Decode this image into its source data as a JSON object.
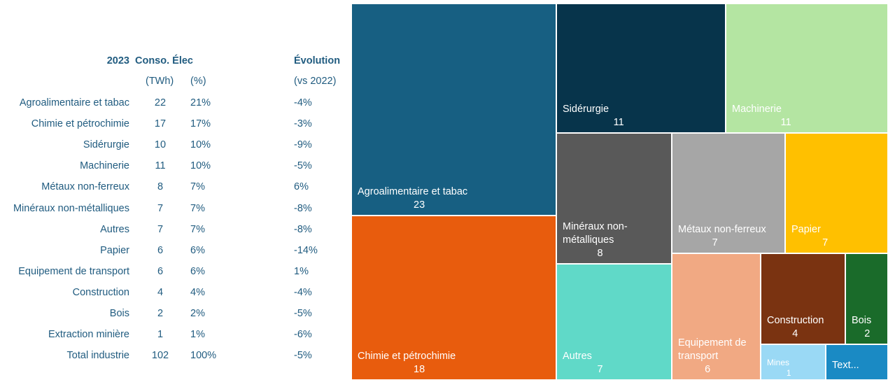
{
  "table": {
    "header": [
      "2023",
      "Conso. Élec",
      "Évolution"
    ],
    "subheader": [
      "(TWh)",
      "(%)",
      "(vs 2022)"
    ],
    "rows": [
      [
        "Agroalimentaire et tabac",
        "22",
        "21%",
        "-4%"
      ],
      [
        "Chimie et pétrochimie",
        "17",
        "17%",
        "-3%"
      ],
      [
        "Sidérurgie",
        "10",
        "10%",
        "-9%"
      ],
      [
        "Machinerie",
        "11",
        "10%",
        "-5%"
      ],
      [
        "Métaux non-ferreux",
        "8",
        "7%",
        "6%"
      ],
      [
        "Minéraux non-métalliques",
        "7",
        "7%",
        "-8%"
      ],
      [
        "Autres",
        "7",
        "7%",
        "-8%"
      ],
      [
        "Papier",
        "6",
        "6%",
        "-14%"
      ],
      [
        "Equipement de transport",
        "6",
        "6%",
        "1%"
      ],
      [
        "Construction",
        "4",
        "4%",
        "-4%"
      ],
      [
        "Bois",
        "2",
        "2%",
        "-5%"
      ],
      [
        "Extraction minière",
        "1",
        "1%",
        "-6%"
      ],
      [
        "Total industrie",
        "102",
        "100%",
        "-5%"
      ]
    ]
  },
  "chart_data": {
    "type": "treemap",
    "categories": [
      "Agroalimentaire et tabac",
      "Chimie et pétrochimie",
      "Sidérurgie",
      "Machinerie",
      "Minéraux non-métalliques",
      "Métaux non-ferreux",
      "Papier",
      "Autres",
      "Equipement de transport",
      "Construction",
      "Bois",
      "Mines",
      "Text..."
    ],
    "values": [
      23,
      18,
      11,
      11,
      8,
      7,
      7,
      7,
      6,
      4,
      2,
      1,
      1
    ],
    "value_labels": [
      "23",
      "18",
      "11",
      "11",
      "8",
      "7",
      "7",
      "7",
      "6",
      "4",
      "2",
      "1",
      null
    ],
    "colors": [
      "#175f82",
      "#e85c0d",
      "#07344b",
      "#b4e5a2",
      "#595959",
      "#a6a6a6",
      "#ffc000",
      "#60d9c8",
      "#f1a983",
      "#7a3311",
      "#1a6b2a",
      "#9ad9f5",
      "#1a8ac4"
    ]
  }
}
